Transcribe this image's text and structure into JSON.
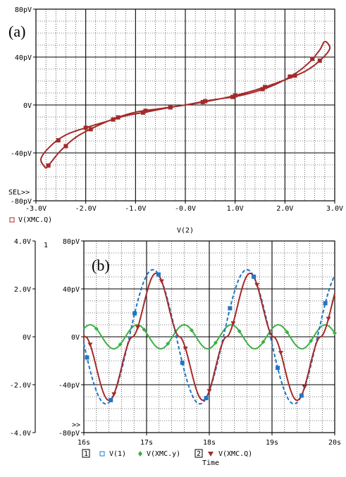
{
  "chart_data": [
    {
      "type": "line",
      "panel_label": "(a)",
      "xlabel": "V(2)",
      "ylabel": "",
      "xlim": [
        -3.0,
        3.0
      ],
      "ylim": [
        -80,
        80
      ],
      "x_ticks": [
        "-3.0V",
        "-2.0V",
        "-1.0V",
        "-0.0V",
        "1.0V",
        "2.0V",
        "3.0V"
      ],
      "y_ticks": [
        "80pV",
        "40pV",
        "0V",
        "-40pV",
        "-80pV"
      ],
      "sel_marker": "SEL>>",
      "grid": true,
      "legend": [
        {
          "name": "V(XMC.Q)",
          "marker": "square",
          "color": "#a52a2a"
        }
      ],
      "series": [
        {
          "name": "V(XMC.Q)",
          "color": "#a52a2a",
          "upper_branch": [
            [
              -2.8,
              -53
            ],
            [
              -2.7,
              -48
            ],
            [
              -2.5,
              -38
            ],
            [
              -2.2,
              -27
            ],
            [
              -1.8,
              -18
            ],
            [
              -1.4,
              -11
            ],
            [
              -1.0,
              -6
            ],
            [
              -0.5,
              -3
            ],
            [
              0.0,
              0
            ],
            [
              0.5,
              4
            ],
            [
              1.0,
              7
            ],
            [
              1.4,
              11
            ],
            [
              1.8,
              17
            ],
            [
              2.2,
              26
            ],
            [
              2.5,
              36
            ],
            [
              2.7,
              46
            ],
            [
              2.8,
              53
            ]
          ],
          "lower_branch": [
            [
              2.8,
              53
            ],
            [
              2.9,
              47
            ],
            [
              2.7,
              37
            ],
            [
              2.4,
              28
            ],
            [
              2.0,
              21
            ],
            [
              1.6,
              15
            ],
            [
              1.2,
              10
            ],
            [
              0.8,
              6
            ],
            [
              0.3,
              2
            ],
            [
              -0.3,
              -2
            ],
            [
              -0.8,
              -6
            ],
            [
              -1.2,
              -9
            ],
            [
              -1.6,
              -14
            ],
            [
              -2.0,
              -19
            ],
            [
              -2.4,
              -25
            ],
            [
              -2.7,
              -34
            ],
            [
              -2.9,
              -45
            ],
            [
              -2.8,
              -53
            ]
          ],
          "markers_x": [
            -2.7,
            -2.5,
            -1.9,
            -1.3,
            -0.8,
            -0.3,
            0.4,
            1.0,
            1.5,
            2.0,
            2.6,
            2.85,
            2.2,
            1.3,
            0.6,
            -0.1,
            -0.7,
            -1.5,
            -2.3,
            -2.8
          ]
        }
      ]
    },
    {
      "type": "line",
      "panel_label": "(b)",
      "xlabel": "Time",
      "xlim": [
        16,
        20
      ],
      "x_ticks": [
        "16s",
        "17s",
        "18s",
        "19s",
        "20s"
      ],
      "y1_axis_number": "1",
      "y2_axis_number": "2",
      "y1lim": [
        -4.0,
        4.0
      ],
      "y1_ticks": [
        "4.0V",
        "2.0V",
        "0V",
        "-2.0V",
        "-4.0V"
      ],
      "y2lim": [
        -80,
        80
      ],
      "y2_ticks": [
        "80pV",
        "40pV",
        "0V",
        "-40pV",
        "-80pV"
      ],
      "sel_marker": ">>",
      "grid": true,
      "legend_group_1": "1",
      "legend_group_2": "2",
      "series": [
        {
          "name": "V(1)",
          "axis": 1,
          "color": "#1f77c8",
          "style": "dashed",
          "marker": "square",
          "amplitude": 2.8,
          "period": 1.5,
          "peak_time": 17.1,
          "unit": "V"
        },
        {
          "name": "V(XMC.y)",
          "axis": 1,
          "color": "#3cb043",
          "style": "solid",
          "marker": "diamond",
          "amplitude": 0.5,
          "period": 0.75,
          "peak_time": 17.6,
          "unit": "V"
        },
        {
          "name": "V(XMC.Q)",
          "axis": 2,
          "color": "#a52a2a",
          "style": "solid",
          "marker": "triangle-down",
          "amplitude": 53,
          "period": 1.5,
          "peak_time": 17.15,
          "unit": "pV"
        }
      ]
    }
  ]
}
